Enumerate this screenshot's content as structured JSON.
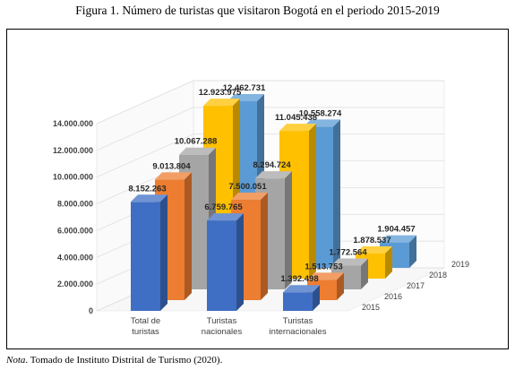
{
  "figure": {
    "title": "Figura 1. Número de turistas que visitaron Bogotá en el periodo 2015-2019",
    "note_prefix": "Nota",
    "note_text": ". Tomado de Instituto Distrital de Turismo (2020)."
  },
  "chart_data": {
    "type": "bar",
    "style": "3d-clustered-columns",
    "categories": [
      "Total de turistas",
      "Turistas nacionales",
      "Turistas internacionales"
    ],
    "category_lines": [
      [
        "Total de",
        "turistas"
      ],
      [
        "Turistas",
        "nacionales"
      ],
      [
        "Turistas",
        "internacionales"
      ]
    ],
    "series": [
      {
        "name": "2015",
        "values": [
          8152263,
          6759765,
          1392498
        ],
        "labels": [
          "8.152.263",
          "6.759.765",
          "1.392.498"
        ],
        "color": "#3f6fc4"
      },
      {
        "name": "2016",
        "values": [
          9013804,
          7500051,
          1513753
        ],
        "labels": [
          "9.013.804",
          "7.500.051",
          "1.513.753"
        ],
        "color": "#ed7d31"
      },
      {
        "name": "2017",
        "values": [
          10067288,
          8294724,
          1772564
        ],
        "labels": [
          "10.067.288",
          "8.294.724",
          "1.772.564"
        ],
        "color": "#a5a5a5"
      },
      {
        "name": "2018",
        "values": [
          12923975,
          11045438,
          1878537
        ],
        "labels": [
          "12.923.975",
          "11.045.438",
          "1.878.537"
        ],
        "color": "#ffc000"
      },
      {
        "name": "2019",
        "values": [
          12462731,
          10558274,
          1904457
        ],
        "labels": [
          "12.462.731",
          "10.558.274",
          "1.904.457"
        ],
        "color": "#5b9bd5"
      }
    ],
    "y_ticks": [
      "0",
      "2.000.000",
      "4.000.000",
      "6.000.000",
      "8.000.000",
      "10.000.000",
      "12.000.000",
      "14.000.000"
    ],
    "ylim": [
      0,
      14000000
    ],
    "grid": true
  }
}
